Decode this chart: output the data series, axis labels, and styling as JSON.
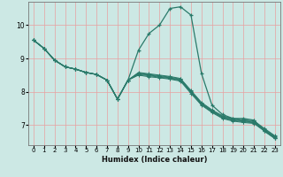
{
  "xlabel": "Humidex (Indice chaleur)",
  "background_color": "#cce8e4",
  "grid_color_major": "#e8a0a0",
  "grid_color_minor": "#dde8e4",
  "line_color": "#2a7a6a",
  "xlim": [
    -0.5,
    23.5
  ],
  "ylim": [
    6.4,
    10.7
  ],
  "yticks": [
    7,
    8,
    9,
    10
  ],
  "xticks": [
    0,
    1,
    2,
    3,
    4,
    5,
    6,
    7,
    8,
    9,
    10,
    11,
    12,
    13,
    14,
    15,
    16,
    17,
    18,
    19,
    20,
    21,
    22,
    23
  ],
  "spike_series": [
    9.55,
    9.3,
    8.95,
    8.75,
    8.68,
    8.58,
    8.52,
    8.35,
    7.78,
    8.35,
    9.25,
    9.75,
    10.0,
    10.5,
    10.55,
    10.3,
    8.55,
    7.6,
    7.32,
    7.2,
    7.2,
    7.15,
    6.82,
    6.6
  ],
  "trend_lines": [
    [
      9.55,
      9.3,
      8.95,
      8.75,
      8.68,
      8.58,
      8.52,
      8.35,
      7.78,
      8.35,
      8.5,
      8.45,
      8.42,
      8.38,
      8.32,
      7.95,
      7.6,
      7.38,
      7.2,
      7.12,
      7.08,
      7.05,
      6.82,
      6.6
    ],
    [
      9.55,
      9.3,
      8.95,
      8.75,
      8.68,
      8.58,
      8.52,
      8.35,
      7.78,
      8.35,
      8.52,
      8.48,
      8.44,
      8.4,
      8.34,
      7.98,
      7.62,
      7.4,
      7.22,
      7.14,
      7.1,
      7.07,
      6.84,
      6.62
    ],
    [
      9.55,
      9.3,
      8.95,
      8.75,
      8.68,
      8.58,
      8.52,
      8.35,
      7.78,
      8.35,
      8.54,
      8.5,
      8.46,
      8.42,
      8.36,
      8.0,
      7.64,
      7.42,
      7.24,
      7.16,
      7.12,
      7.09,
      6.86,
      6.64
    ],
    [
      9.55,
      9.3,
      8.95,
      8.75,
      8.68,
      8.58,
      8.52,
      8.35,
      7.78,
      8.35,
      8.56,
      8.52,
      8.48,
      8.44,
      8.38,
      8.02,
      7.66,
      7.44,
      7.26,
      7.18,
      7.14,
      7.11,
      6.88,
      6.66
    ],
    [
      9.55,
      9.3,
      8.95,
      8.75,
      8.68,
      8.58,
      8.52,
      8.35,
      7.78,
      8.35,
      8.58,
      8.54,
      8.5,
      8.46,
      8.4,
      8.04,
      7.68,
      7.46,
      7.28,
      7.2,
      7.16,
      7.13,
      6.9,
      6.68
    ]
  ]
}
